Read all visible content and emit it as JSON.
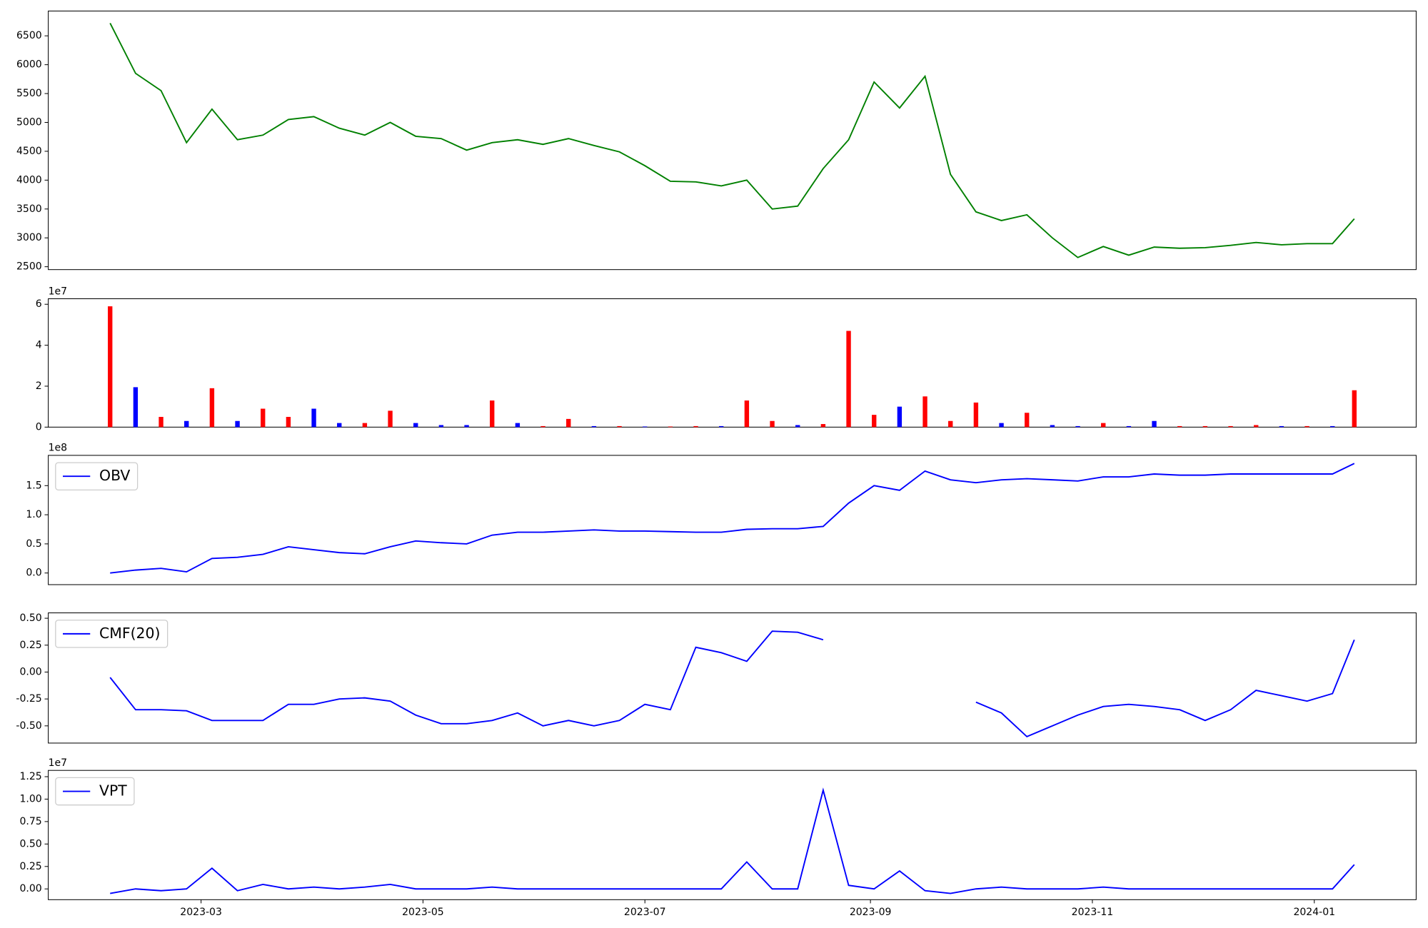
{
  "chart_data": [
    {
      "type": "line",
      "xlim": [
        19375,
        19751
      ],
      "ylim": [
        2450,
        6930
      ],
      "yticks": [
        2500,
        3000,
        3500,
        4000,
        4500,
        5000,
        5500,
        6000,
        6500
      ],
      "x": [
        19392,
        19399,
        19406,
        19413,
        19420,
        19427,
        19434,
        19441,
        19448,
        19455,
        19462,
        19469,
        19476,
        19483,
        19490,
        19497,
        19504,
        19511,
        19518,
        19525,
        19532,
        19539,
        19546,
        19553,
        19560,
        19567,
        19574,
        19581,
        19588,
        19595,
        19602,
        19609,
        19616,
        19623,
        19630,
        19637,
        19644,
        19651,
        19658,
        19665,
        19672,
        19679,
        19686,
        19693,
        19700,
        19707,
        19714,
        19721,
        19728,
        19734
      ],
      "series": [
        {
          "color": "green",
          "values": [
            6720,
            5850,
            5550,
            4650,
            5230,
            4700,
            4780,
            5050,
            5100,
            4900,
            4780,
            5000,
            4760,
            4720,
            4520,
            4650,
            4700,
            4620,
            4720,
            4600,
            4490,
            4250,
            3980,
            3970,
            3900,
            4000,
            3500,
            3550,
            4200,
            4700,
            5700,
            5250,
            5800,
            4100,
            3450,
            3300,
            3400,
            3000,
            2660,
            2850,
            2700,
            2840,
            2820,
            2830,
            2870,
            2920,
            2880,
            2900,
            2900,
            3330
          ]
        }
      ]
    },
    {
      "type": "bar",
      "xlim": [
        19375,
        19751
      ],
      "ylim": [
        0,
        6.27
      ],
      "yticks": [
        0,
        2,
        4,
        6
      ],
      "y_offset_label": "1e7",
      "x": [
        19392,
        19399,
        19406,
        19413,
        19420,
        19427,
        19434,
        19441,
        19448,
        19455,
        19462,
        19469,
        19476,
        19483,
        19490,
        19497,
        19504,
        19511,
        19518,
        19525,
        19532,
        19539,
        19546,
        19553,
        19560,
        19567,
        19574,
        19581,
        19588,
        19595,
        19602,
        19609,
        19616,
        19623,
        19630,
        19637,
        19644,
        19651,
        19658,
        19665,
        19672,
        19679,
        19686,
        19693,
        19700,
        19707,
        19714,
        19721,
        19728,
        19734
      ],
      "values": [
        5.9,
        1.95,
        0.5,
        0.3,
        1.9,
        0.3,
        0.9,
        0.5,
        0.9,
        0.2,
        0.2,
        0.8,
        0.2,
        0.1,
        0.1,
        1.3,
        0.2,
        0.05,
        0.4,
        0.05,
        0.05,
        0.03,
        0.03,
        0.05,
        0.05,
        1.3,
        0.3,
        0.1,
        0.15,
        4.7,
        0.6,
        1.0,
        1.5,
        0.3,
        1.2,
        0.2,
        0.7,
        0.1,
        0.05,
        0.2,
        0.05,
        0.3,
        0.05,
        0.05,
        0.05,
        0.1,
        0.05,
        0.05,
        0.05,
        1.8
      ],
      "colors": [
        "red",
        "blue",
        "red",
        "blue",
        "red",
        "blue",
        "red",
        "red",
        "blue",
        "blue",
        "red",
        "red",
        "blue",
        "blue",
        "blue",
        "red",
        "blue",
        "red",
        "red",
        "blue",
        "red",
        "blue",
        "red",
        "red",
        "blue",
        "red",
        "red",
        "blue",
        "red",
        "red",
        "red",
        "blue",
        "red",
        "red",
        "red",
        "blue",
        "red",
        "blue",
        "blue",
        "red",
        "blue",
        "blue",
        "red",
        "red",
        "red",
        "red",
        "blue",
        "red",
        "blue",
        "red"
      ]
    },
    {
      "type": "line",
      "xlim": [
        19375,
        19751
      ],
      "ylim": [
        -0.2,
        2.02
      ],
      "yticks": [
        {
          "value": 0,
          "label": "0.0"
        },
        0.5,
        {
          "value": 1,
          "label": "1.0"
        },
        1.5
      ],
      "y_offset_label": "1e8",
      "legend": "upper left",
      "x": [
        19392,
        19399,
        19406,
        19413,
        19420,
        19427,
        19434,
        19441,
        19448,
        19455,
        19462,
        19469,
        19476,
        19483,
        19490,
        19497,
        19504,
        19511,
        19518,
        19525,
        19532,
        19539,
        19546,
        19553,
        19560,
        19567,
        19574,
        19581,
        19588,
        19595,
        19602,
        19609,
        19616,
        19623,
        19630,
        19637,
        19644,
        19651,
        19658,
        19665,
        19672,
        19679,
        19686,
        19693,
        19700,
        19707,
        19714,
        19721,
        19728,
        19734
      ],
      "series": [
        {
          "name": "OBV",
          "color": "blue",
          "values": [
            0,
            0.05,
            0.08,
            0.02,
            0.25,
            0.27,
            0.32,
            0.45,
            0.4,
            0.35,
            0.33,
            0.45,
            0.55,
            0.52,
            0.5,
            0.65,
            0.7,
            0.7,
            0.72,
            0.74,
            0.72,
            0.72,
            0.71,
            0.7,
            0.7,
            0.75,
            0.76,
            0.76,
            0.8,
            1.2,
            1.5,
            1.42,
            1.75,
            1.6,
            1.55,
            1.6,
            1.62,
            1.6,
            1.58,
            1.65,
            1.65,
            1.7,
            1.68,
            1.68,
            1.7,
            1.7,
            1.7,
            1.7,
            1.7,
            1.88
          ]
        }
      ]
    },
    {
      "type": "line",
      "xlim": [
        19375,
        19751
      ],
      "ylim": [
        -0.66,
        0.55
      ],
      "yticks": [
        {
          "value": -0.5,
          "label": "-0.50"
        },
        {
          "value": -0.25,
          "label": "-0.25"
        },
        {
          "value": 0,
          "label": "0.00"
        },
        {
          "value": 0.25,
          "label": "0.25"
        },
        {
          "value": 0.5,
          "label": "0.50"
        }
      ],
      "legend": "upper left",
      "x": [
        19392,
        19399,
        19406,
        19413,
        19420,
        19427,
        19434,
        19441,
        19448,
        19455,
        19462,
        19469,
        19476,
        19483,
        19490,
        19497,
        19504,
        19511,
        19518,
        19525,
        19532,
        19539,
        19546,
        19553,
        19560,
        19567,
        19574,
        19581,
        19588,
        19595,
        19602,
        19609,
        19616,
        19623,
        19630,
        19637,
        19644,
        19651,
        19658,
        19665,
        19672,
        19679,
        19686,
        19693,
        19700,
        19707,
        19714,
        19721,
        19728,
        19734
      ],
      "series": [
        {
          "name": "CMF(20)",
          "color": "blue",
          "values": [
            -0.05,
            -0.35,
            -0.35,
            -0.36,
            -0.45,
            -0.45,
            -0.45,
            -0.3,
            -0.3,
            -0.25,
            -0.24,
            -0.27,
            -0.4,
            -0.48,
            -0.48,
            -0.45,
            -0.38,
            -0.5,
            -0.45,
            -0.5,
            -0.45,
            -0.3,
            -0.35,
            0.23,
            0.18,
            0.1,
            0.38,
            0.37,
            0.3,
            null,
            null,
            null,
            null,
            null,
            -0.28,
            -0.38,
            -0.6,
            -0.5,
            -0.4,
            -0.32,
            -0.3,
            -0.32,
            -0.35,
            -0.45,
            -0.35,
            -0.17,
            -0.22,
            -0.27,
            -0.2,
            0.3
          ]
        }
      ]
    },
    {
      "type": "line",
      "xlim": [
        19375,
        19751
      ],
      "ylim": [
        -0.12,
        1.32
      ],
      "yticks": [
        {
          "value": 0,
          "label": "0.00"
        },
        {
          "value": 0.25,
          "label": "0.25"
        },
        {
          "value": 0.5,
          "label": "0.50"
        },
        {
          "value": 0.75,
          "label": "0.75"
        },
        {
          "value": 1,
          "label": "1.00"
        },
        {
          "value": 1.25,
          "label": "1.25"
        }
      ],
      "y_offset_label": "1e7",
      "legend": "upper left",
      "xticks": [
        {
          "value": 19417,
          "label": "2023-03"
        },
        {
          "value": 19478,
          "label": "2023-05"
        },
        {
          "value": 19539,
          "label": "2023-07"
        },
        {
          "value": 19601,
          "label": "2023-09"
        },
        {
          "value": 19662,
          "label": "2023-11"
        },
        {
          "value": 19723,
          "label": "2024-01"
        }
      ],
      "x": [
        19392,
        19399,
        19406,
        19413,
        19420,
        19427,
        19434,
        19441,
        19448,
        19455,
        19462,
        19469,
        19476,
        19483,
        19490,
        19497,
        19504,
        19511,
        19518,
        19525,
        19532,
        19539,
        19546,
        19553,
        19560,
        19567,
        19574,
        19581,
        19588,
        19595,
        19602,
        19609,
        19616,
        19623,
        19630,
        19637,
        19644,
        19651,
        19658,
        19665,
        19672,
        19679,
        19686,
        19693,
        19700,
        19707,
        19714,
        19721,
        19728,
        19734
      ],
      "series": [
        {
          "name": "VPT",
          "color": "blue",
          "values": [
            -0.05,
            0,
            -0.02,
            0,
            0.23,
            -0.02,
            0.05,
            0,
            0.02,
            0,
            0.02,
            0.05,
            0,
            0,
            0,
            0.02,
            0,
            0,
            0,
            0,
            0,
            0,
            0,
            0,
            0,
            0.3,
            0,
            0,
            1.1,
            0.04,
            0,
            0.2,
            -0.02,
            -0.05,
            0,
            0.02,
            0,
            0,
            0,
            0.02,
            0,
            0,
            0,
            0,
            0,
            0,
            0,
            0,
            0,
            0.27
          ]
        }
      ]
    }
  ]
}
